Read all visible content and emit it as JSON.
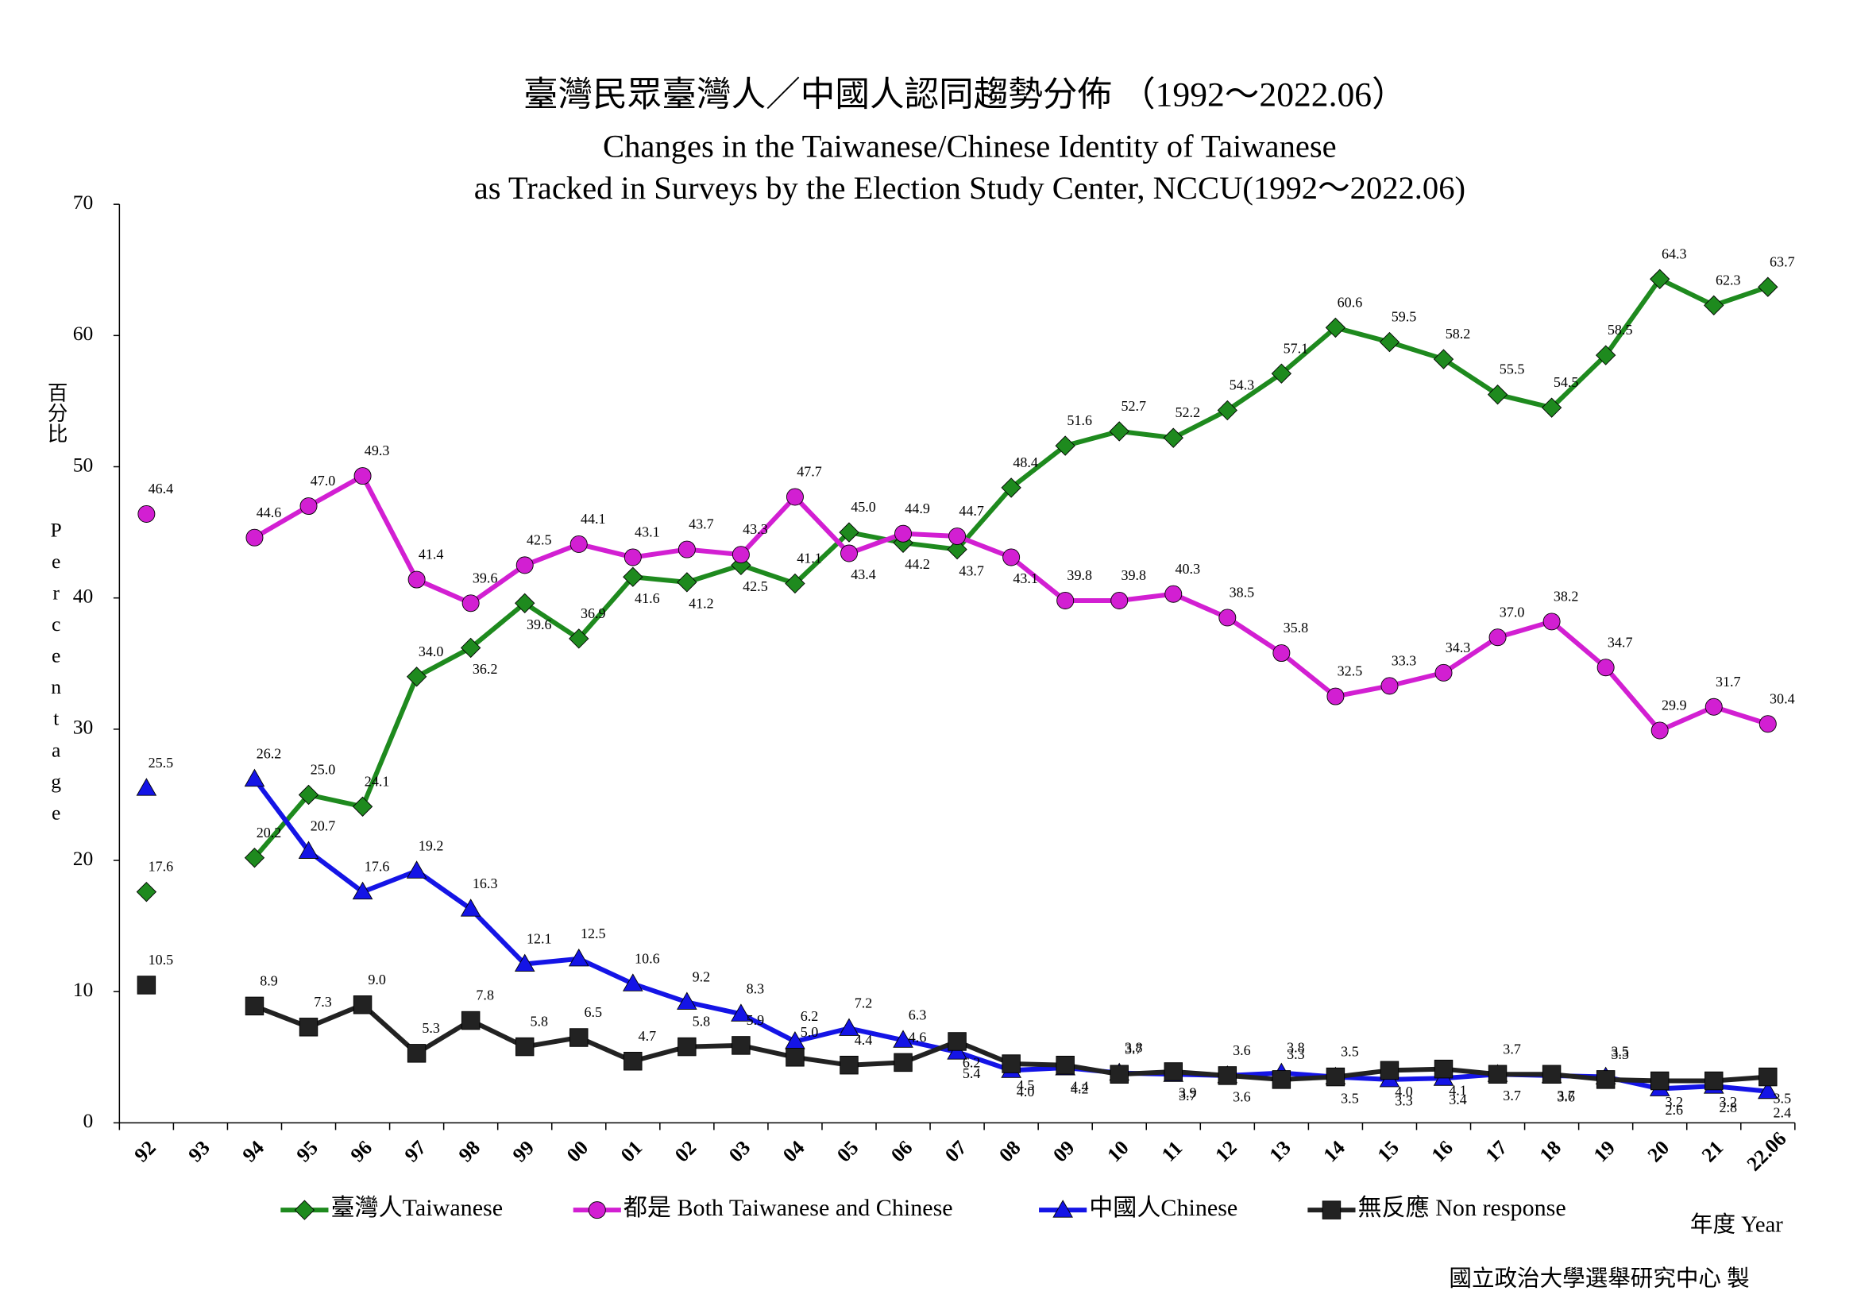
{
  "chart_data": {
    "type": "line",
    "title": "臺灣民眾臺灣人／中國人認同趨勢分佈 （1992～2022.06）",
    "subtitle": [
      "Changes in the Taiwanese/Chinese Identity of Taiwanese",
      "as Tracked in Surveys by the Election Study Center, NCCU(1992～2022.06)"
    ],
    "ylabel_zh": "百分比",
    "ylabel": "Percentage",
    "xlabel": "年度 Year",
    "source": "國立政治大學選舉研究中心 製",
    "categories": [
      "92",
      "93",
      "94",
      "95",
      "96",
      "97",
      "98",
      "99",
      "00",
      "01",
      "02",
      "03",
      "04",
      "05",
      "06",
      "07",
      "08",
      "09",
      "10",
      "11",
      "12",
      "13",
      "14",
      "15",
      "16",
      "17",
      "18",
      "19",
      "20",
      "21",
      "22.06"
    ],
    "ylim": [
      0,
      70
    ],
    "yticks": [
      0,
      10,
      20,
      30,
      40,
      50,
      60,
      70
    ],
    "grid": false,
    "legend": "bottom",
    "series": [
      {
        "name": "臺灣人Taiwanese",
        "color": "#1e8a1e",
        "marker": "diamond",
        "values": [
          17.6,
          null,
          20.2,
          25.0,
          24.1,
          34.0,
          36.2,
          39.6,
          36.9,
          41.6,
          41.2,
          42.5,
          41.1,
          45.0,
          44.2,
          43.7,
          48.4,
          51.6,
          52.7,
          52.2,
          54.3,
          57.1,
          60.6,
          59.5,
          58.2,
          55.5,
          54.5,
          58.5,
          64.3,
          62.3,
          63.7
        ],
        "value_labels": [
          "17.6",
          null,
          "20.2",
          "25.0",
          "24.1",
          "34.0",
          "36.2",
          "39.6",
          "36.9",
          "41.6",
          "41.2",
          "42.5",
          "41.1",
          "45.0",
          "44.2",
          "43.7",
          "48.4",
          "51.6",
          "52.7",
          "52.2",
          "54.3",
          "57.1",
          "60.6",
          "59.5",
          "58.2",
          "55.5",
          "54.5",
          "58.5",
          "64.3",
          "62.3",
          "63.7"
        ]
      },
      {
        "name": "都是 Both Taiwanese and Chinese",
        "color": "#d21fd2",
        "marker": "circle",
        "values": [
          46.4,
          null,
          44.6,
          47.0,
          49.3,
          41.4,
          39.6,
          42.5,
          44.1,
          43.1,
          43.7,
          43.3,
          47.7,
          43.4,
          44.9,
          44.7,
          43.1,
          39.8,
          39.8,
          40.3,
          38.5,
          35.8,
          32.5,
          33.3,
          34.3,
          37.0,
          38.2,
          34.7,
          29.9,
          31.7,
          30.4
        ],
        "value_labels": [
          "46.4",
          null,
          "44.6",
          "47.0",
          "49.3",
          "41.4",
          "39.6",
          "42.5",
          "44.1",
          "43.1",
          "43.7",
          "43.3",
          "47.7",
          "43.4",
          "44.9",
          "44.7",
          "43.1",
          "39.8",
          "39.8",
          "40.3",
          "38.5",
          "35.8",
          "32.5",
          "33.3",
          "34.3",
          "37.0",
          "38.2",
          "34.7",
          "29.9",
          "31.7",
          "30.4"
        ]
      },
      {
        "name": "中國人Chinese",
        "color": "#1414e6",
        "marker": "triangle",
        "values": [
          25.5,
          null,
          26.2,
          20.7,
          17.6,
          19.2,
          16.3,
          12.1,
          12.5,
          10.6,
          9.2,
          8.3,
          6.2,
          7.2,
          6.3,
          5.4,
          4.0,
          4.2,
          3.8,
          3.7,
          3.6,
          3.8,
          3.5,
          3.3,
          3.4,
          3.7,
          3.6,
          3.5,
          2.6,
          2.8,
          2.4
        ],
        "value_labels": [
          "25.5",
          null,
          "26.2",
          "20.7",
          "17.6",
          "19.2",
          "16.3",
          "12.1",
          "12.5",
          "10.6",
          "9.2",
          "8.3",
          "6.2",
          "7.2",
          "6.3",
          "5.4",
          "4.0",
          "4.2",
          "3.8",
          "3.7",
          "3.6",
          "3.8",
          "3.5",
          "3.3",
          "3.4",
          "3.7",
          "3.6",
          "3.5",
          "2.6",
          "2.8",
          "2.4"
        ]
      },
      {
        "name": "無反應 Non response",
        "color": "#222222",
        "marker": "square",
        "values": [
          10.5,
          null,
          8.9,
          7.3,
          9.0,
          5.3,
          7.8,
          5.8,
          6.5,
          4.7,
          5.8,
          5.9,
          5.0,
          4.4,
          4.6,
          6.2,
          4.5,
          4.4,
          3.7,
          3.9,
          3.6,
          3.3,
          3.5,
          4.0,
          4.1,
          3.7,
          3.7,
          3.3,
          3.2,
          3.2,
          3.5
        ],
        "value_labels": [
          "10.5",
          null,
          "8.9",
          "7.3",
          "9.0",
          "5.3",
          "7.8",
          "5.8",
          "6.5",
          "4.7",
          "5.8",
          "5.9",
          "5.0",
          "4.4",
          "4.6",
          "6.2",
          "4.5",
          "4.4",
          "3.7",
          "3.9",
          "3.6",
          "3.3",
          "3.5",
          "4.0",
          "4.1",
          "3.7",
          "3.7",
          "3.3",
          "3.2",
          "3.2",
          "3.5"
        ]
      }
    ]
  }
}
